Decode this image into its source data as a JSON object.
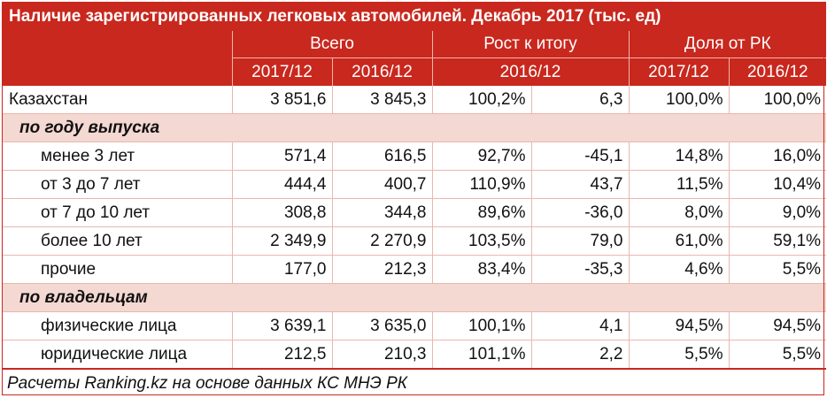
{
  "title": "Наличие зарегистрированных легковых автомобилей. Декабрь 2017 (тыс. ед)",
  "header": {
    "group1": "Всего",
    "group2": "Рост к итогу",
    "group3": "Доля от РК",
    "sub": [
      "2017/12",
      "2016/12",
      "2016/12",
      "2017/12",
      "2016/12"
    ]
  },
  "total": {
    "label": "Казахстан",
    "values": [
      "3 851,6",
      "3 845,3",
      "100,2%",
      "6,3",
      "100,0%",
      "100,0%"
    ]
  },
  "section1": {
    "label": "по году выпуска",
    "rows": [
      {
        "label": "менее 3 лет",
        "values": [
          "571,4",
          "616,5",
          "92,7%",
          "-45,1",
          "14,8%",
          "16,0%"
        ]
      },
      {
        "label": "от 3 до 7 лет",
        "values": [
          "444,4",
          "400,7",
          "110,9%",
          "43,7",
          "11,5%",
          "10,4%"
        ]
      },
      {
        "label": "от 7 до 10 лет",
        "values": [
          "308,8",
          "344,8",
          "89,6%",
          "-36,0",
          "8,0%",
          "9,0%"
        ]
      },
      {
        "label": "более 10 лет",
        "values": [
          "2 349,9",
          "2 270,9",
          "103,5%",
          "79,0",
          "61,0%",
          "59,1%"
        ]
      },
      {
        "label": "прочие",
        "values": [
          "177,0",
          "212,3",
          "83,4%",
          "-35,3",
          "4,6%",
          "5,5%"
        ]
      }
    ]
  },
  "section2": {
    "label": "по владельцам",
    "rows": [
      {
        "label": "физические лица",
        "values": [
          "3 639,1",
          "3 635,0",
          "100,1%",
          "4,1",
          "94,5%",
          "94,5%"
        ]
      },
      {
        "label": "юридические лица",
        "values": [
          "212,5",
          "210,3",
          "101,1%",
          "2,2",
          "5,5%",
          "5,5%"
        ]
      }
    ]
  },
  "footer": "Расчеты Ranking.kz на основе данных КС МНЭ РК",
  "colors": {
    "accent": "#c8281e",
    "section_bg": "#f4d8d2"
  }
}
